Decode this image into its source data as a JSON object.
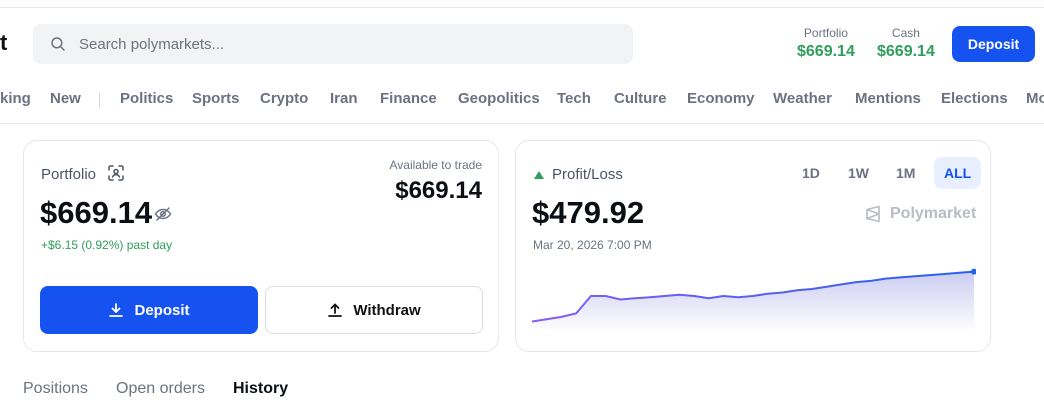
{
  "header": {
    "logo_fragment": "t",
    "search": {
      "placeholder": "Search polymarkets..."
    },
    "portfolio": {
      "label": "Portfolio",
      "value": "$669.14"
    },
    "cash": {
      "label": "Cash",
      "value": "$669.14"
    },
    "deposit_label": "Deposit"
  },
  "nav": {
    "items": [
      "king",
      "New",
      "Politics",
      "Sports",
      "Crypto",
      "Iran",
      "Finance",
      "Geopolitics",
      "Tech",
      "Culture",
      "Economy",
      "Weather",
      "Mentions",
      "Elections",
      "Mo"
    ]
  },
  "portfolio_card": {
    "label": "Portfolio",
    "value": "$669.14",
    "change": "+$6.15 (0.92%) past day",
    "available_label": "Available to trade",
    "available_value": "$669.14",
    "deposit_label": "Deposit",
    "withdraw_label": "Withdraw"
  },
  "pnl_card": {
    "label": "Profit/Loss",
    "value": "$479.92",
    "date": "Mar 20, 2026 7:00 PM",
    "ranges": [
      "1D",
      "1W",
      "1M",
      "ALL"
    ],
    "active_range": "ALL",
    "brand": "Polymarket",
    "series": [
      0.06,
      0.1,
      0.14,
      0.2,
      0.5,
      0.5,
      0.44,
      0.46,
      0.48,
      0.5,
      0.52,
      0.5,
      0.46,
      0.5,
      0.48,
      0.5,
      0.54,
      0.56,
      0.6,
      0.62,
      0.66,
      0.7,
      0.74,
      0.76,
      0.8,
      0.82,
      0.84,
      0.86,
      0.88,
      0.9,
      0.92
    ]
  },
  "tabs": [
    {
      "label": "Positions",
      "active": false
    },
    {
      "label": "Open orders",
      "active": false
    },
    {
      "label": "History",
      "active": true
    }
  ],
  "colors": {
    "accent": "#1652f0",
    "positive": "#2e9e5b",
    "chart_line": "#7b61ff"
  }
}
